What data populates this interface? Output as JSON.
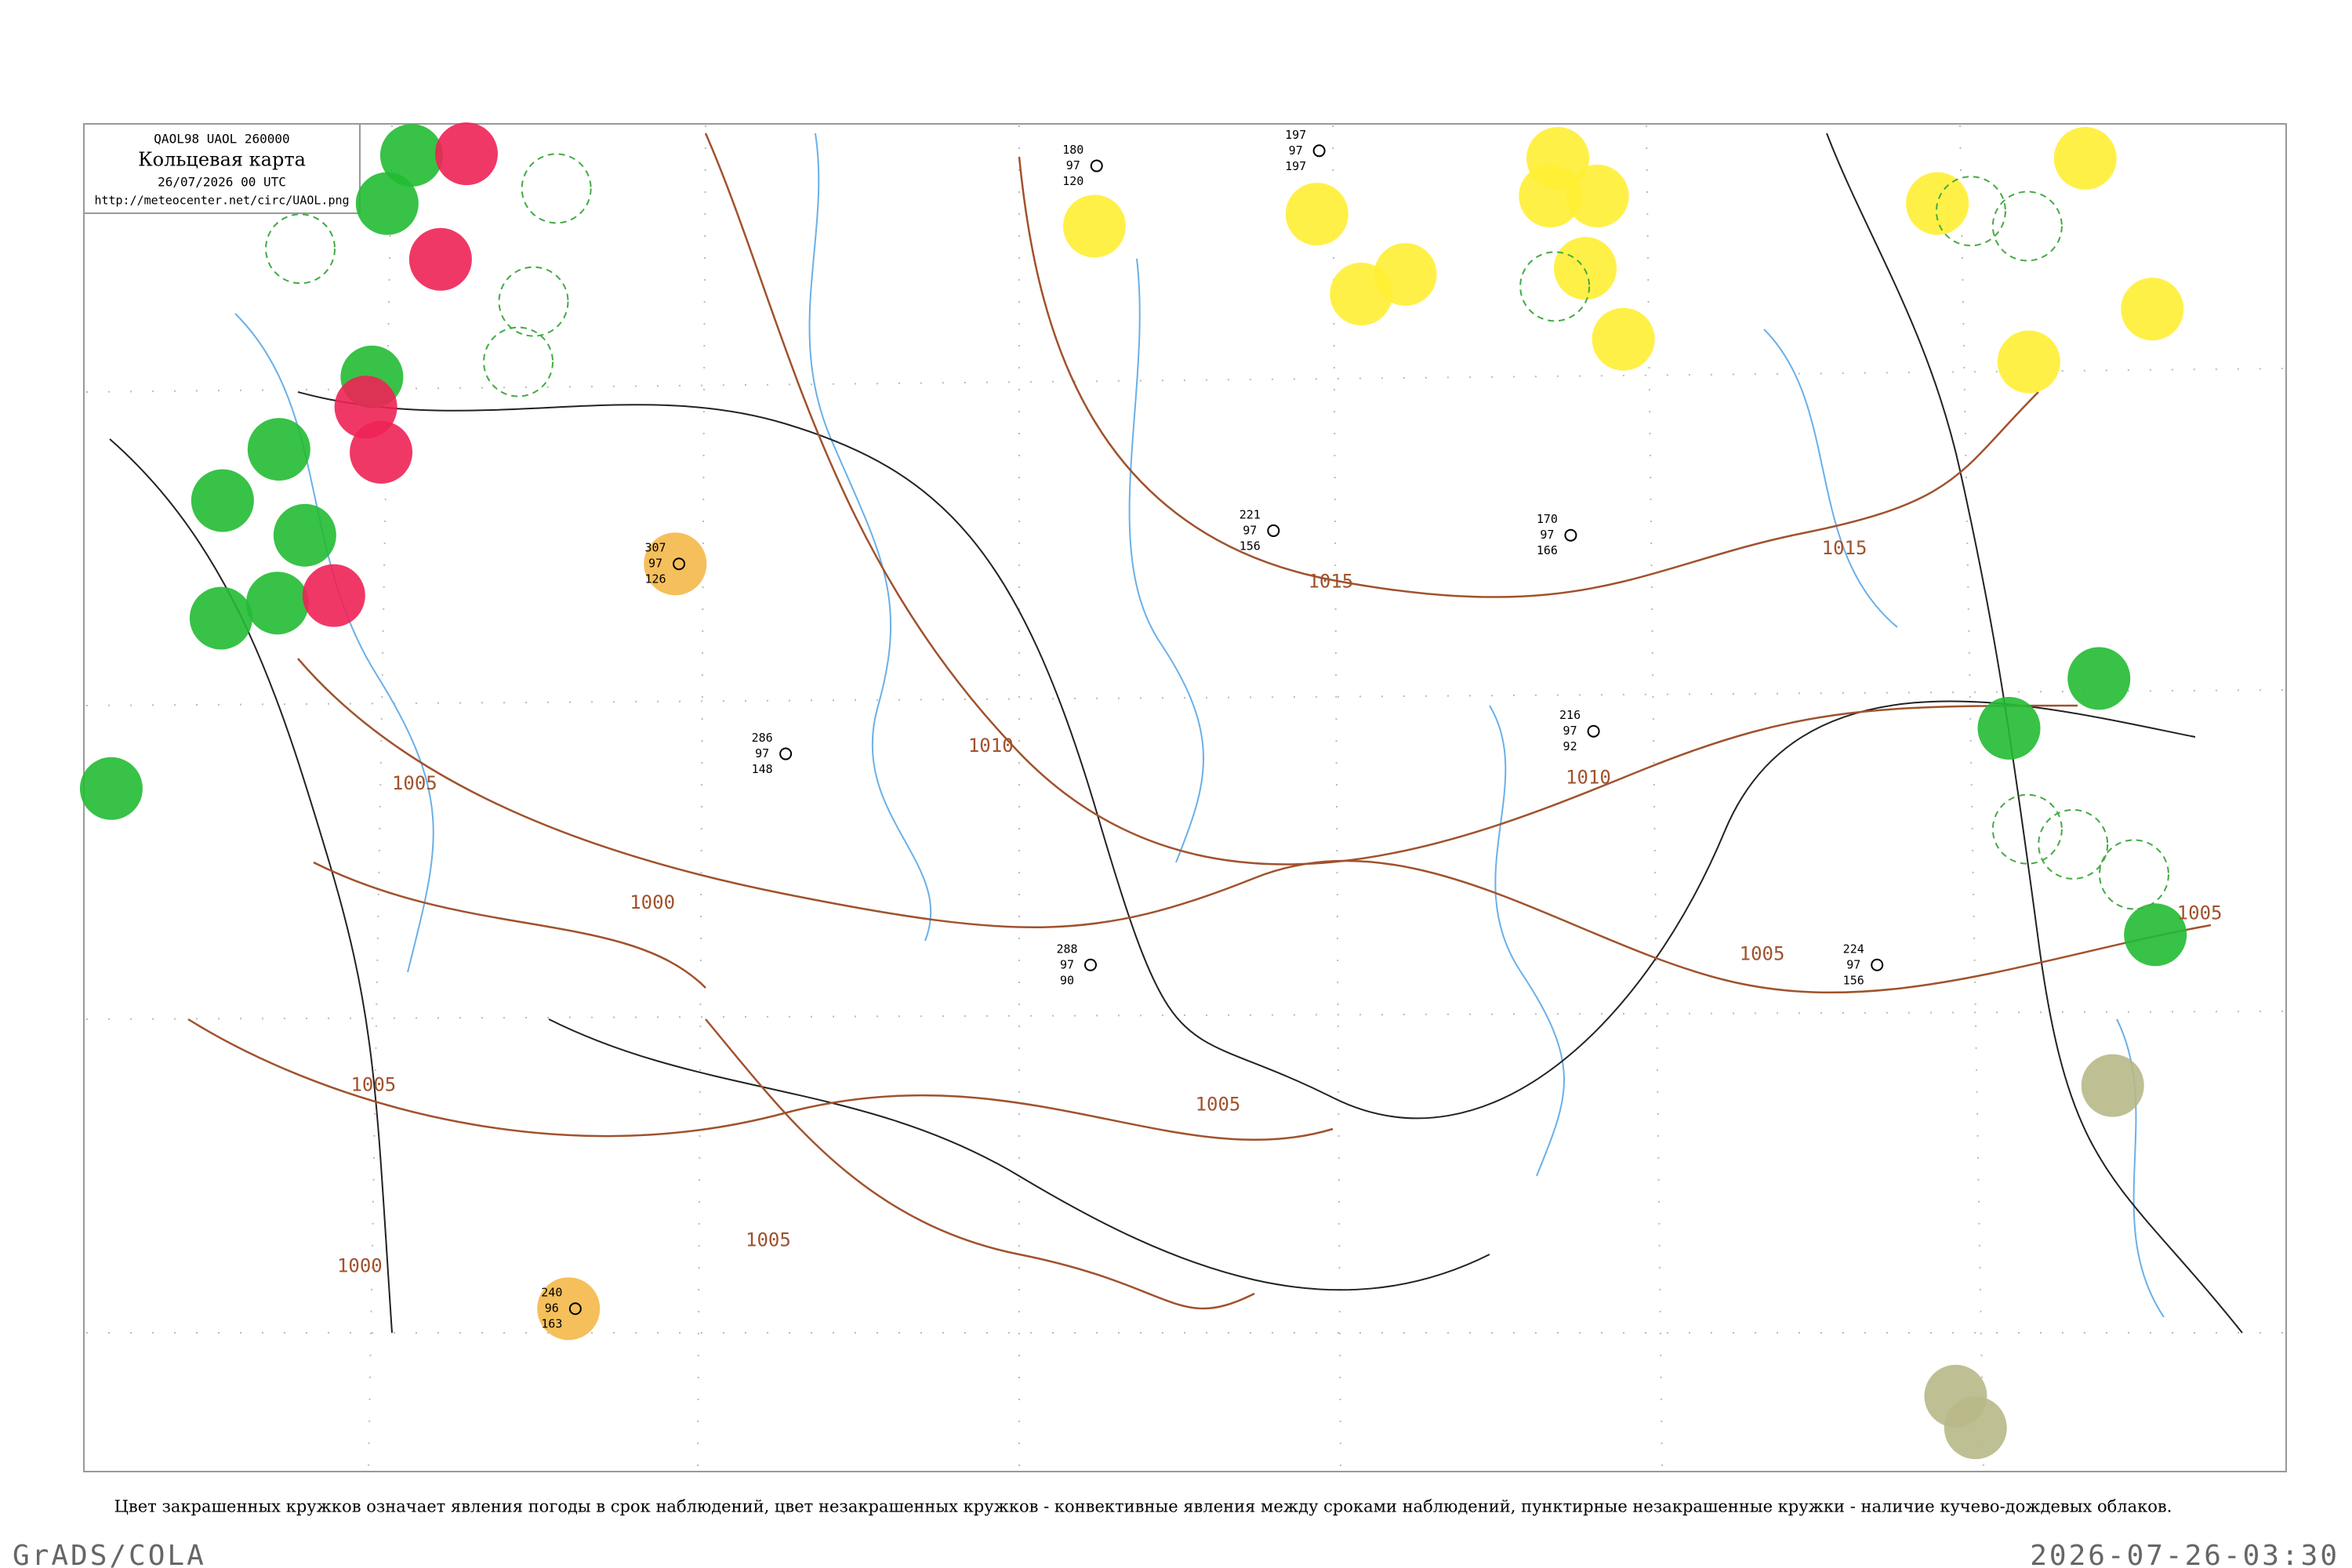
{
  "header": {
    "code": "QAOL98 UAOL 260000",
    "title": "Кольцевая карта",
    "date": "26/07/2026 00 UTC",
    "url": "http://meteocenter.net/circ/UAOL.png"
  },
  "isobar_labels": [
    "1015",
    "1015",
    "1010",
    "1010",
    "1005",
    "1005",
    "1005",
    "1005",
    "1005",
    "1005",
    "1000",
    "1000"
  ],
  "stations": [
    {
      "values": [
        "307",
        "97",
        "126"
      ]
    },
    {
      "values": [
        "240",
        "96",
        "163"
      ]
    },
    {
      "values": [
        "221",
        "97",
        "156"
      ]
    },
    {
      "values": [
        "180",
        "97",
        "120"
      ]
    },
    {
      "values": [
        "197",
        "97",
        "197"
      ]
    },
    {
      "values": [
        "170",
        "97",
        "166"
      ]
    },
    {
      "values": [
        "288",
        "97",
        "90"
      ]
    },
    {
      "values": [
        "224",
        "97",
        "156"
      ]
    },
    {
      "values": [
        "286",
        "97",
        "148"
      ]
    },
    {
      "values": [
        "216",
        "97",
        "92"
      ]
    }
  ],
  "caption": "Цвет закрашенных кружков означает явления погоды в срок наблюдений, цвет незакрашенных кружков - конвективные явления между сроками наблюдений, пунктирные незакрашенные кружки - наличие кучево-дождевых облаков.",
  "footer": {
    "left": "GrADS/COLA",
    "right": "2026-07-26-03:30"
  }
}
